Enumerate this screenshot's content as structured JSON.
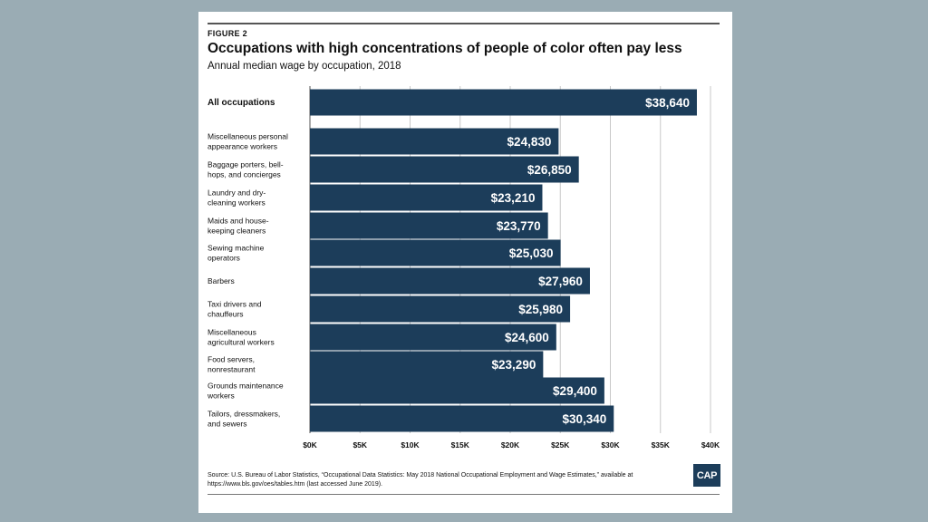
{
  "figure_label": "FIGURE 2",
  "source_text": "Source: U.S. Bureau of Labor Statistics, “Occupational Data Statistics: May 2018 National Occupational Employment and Wage Estimates,” available at https://www.bls.gov/oes/tables.htm (last accessed June 2019).",
  "logo_text": "CAP",
  "colors": {
    "bar": "#1c3d5a",
    "grid": "#c8c8c8",
    "background": "#9aacb4"
  },
  "chart_data": {
    "type": "bar",
    "orientation": "horizontal",
    "title": "Occupations with high concentrations of people of color often pay less",
    "subtitle": "Annual median wage by occupation, 2018",
    "xlabel": "",
    "ylabel": "",
    "xlim": [
      0,
      40000
    ],
    "grid": true,
    "categories": [
      [
        "All occupations"
      ],
      [
        "Miscellaneous personal",
        "appearance workers"
      ],
      [
        "Baggage porters, bell-",
        "hops, and concierges"
      ],
      [
        "Laundry and dry-",
        "cleaning workers"
      ],
      [
        "Maids and house-",
        "keeping cleaners"
      ],
      [
        "Sewing machine",
        "operators"
      ],
      [
        "Barbers"
      ],
      [
        "Taxi drivers and",
        "chauffeurs"
      ],
      [
        "Miscellaneous",
        "agricultural workers"
      ],
      [
        "Food servers,",
        "nonrestaurant"
      ],
      [
        "Grounds maintenance",
        "workers"
      ],
      [
        "Tailors, dressmakers,",
        "and sewers"
      ]
    ],
    "values": [
      38640,
      24830,
      26850,
      23210,
      23770,
      25030,
      27960,
      25980,
      24600,
      23290,
      29400,
      30340
    ],
    "data_labels": [
      "$38,640",
      "$24,830",
      "$26,850",
      "$23,210",
      "$23,770",
      "$25,030",
      "$27,960",
      "$25,980",
      "$24,600",
      "$23,290",
      "$29,400",
      "$30,340"
    ],
    "ticks": [
      0,
      5000,
      10000,
      15000,
      20000,
      25000,
      30000,
      35000,
      40000
    ],
    "tick_labels": [
      "$0K",
      "$5K",
      "$10K",
      "$15K",
      "$20K",
      "$25K",
      "$30K",
      "$35K",
      "$40K"
    ]
  }
}
